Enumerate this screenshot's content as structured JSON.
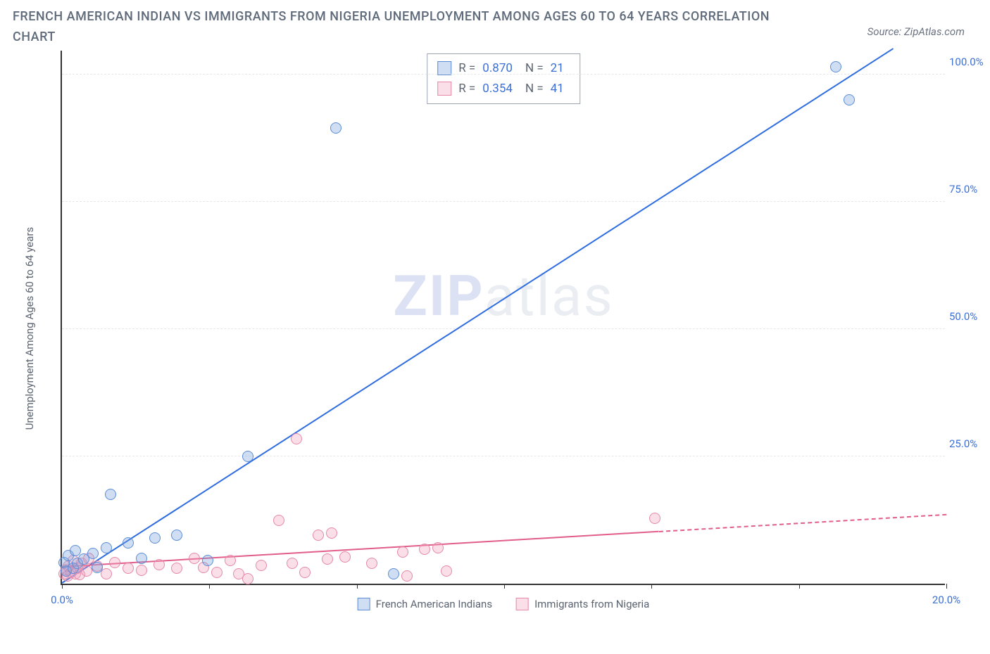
{
  "title": "FRENCH AMERICAN INDIAN VS IMMIGRANTS FROM NIGERIA UNEMPLOYMENT AMONG AGES 60 TO 64 YEARS CORRELATION CHART",
  "source": "Source: ZipAtlas.com",
  "watermark": {
    "bold": "ZIP",
    "light": "atlas"
  },
  "chart": {
    "type": "scatter",
    "ylabel": "Unemployment Among Ages 60 to 64 years",
    "xlim": [
      0,
      20
    ],
    "ylim": [
      0,
      105
    ],
    "xticks": [
      0,
      3.33,
      6.67,
      10,
      13.33,
      16.67,
      20
    ],
    "xtick_labels": {
      "0": "0.0%",
      "20": "20.0%"
    },
    "yticks": [
      25,
      50,
      75,
      100
    ],
    "ytick_labels": [
      "25.0%",
      "50.0%",
      "75.0%",
      "100.0%"
    ],
    "grid_color": "#e5e7eb",
    "axis_color": "#333333",
    "background_color": "#ffffff",
    "marker_radius": 8,
    "marker_stroke_width": 1.5,
    "line_width": 2
  },
  "series": {
    "a": {
      "name": "French American Indians",
      "color_stroke": "#5b8dd6",
      "color_fill": "rgba(120,160,220,0.35)",
      "line_color": "#2f6de0",
      "R": "0.870",
      "N": "21",
      "trend": {
        "x1": 0,
        "y1": 0,
        "x2": 18.8,
        "y2": 105,
        "dash_after_x": null
      },
      "points": [
        [
          0.05,
          4.2
        ],
        [
          0.1,
          2.5
        ],
        [
          0.15,
          5.5
        ],
        [
          0.25,
          3.0
        ],
        [
          0.3,
          6.5
        ],
        [
          0.35,
          4.0
        ],
        [
          0.5,
          4.8
        ],
        [
          0.7,
          6.0
        ],
        [
          0.8,
          3.2
        ],
        [
          1.0,
          7.0
        ],
        [
          1.1,
          17.5
        ],
        [
          1.5,
          8.0
        ],
        [
          1.8,
          5.0
        ],
        [
          2.1,
          9.0
        ],
        [
          2.6,
          9.5
        ],
        [
          3.3,
          4.5
        ],
        [
          4.2,
          25.0
        ],
        [
          6.2,
          89.5
        ],
        [
          7.5,
          2.0
        ],
        [
          17.5,
          101.5
        ],
        [
          17.8,
          95.0
        ]
      ]
    },
    "b": {
      "name": "Immigrants from Nigeria",
      "color_stroke": "#e589a7",
      "color_fill": "rgba(240,160,190,0.35)",
      "line_color": "#e15d8b",
      "R": "0.354",
      "N": "41",
      "trend": {
        "x1": 0,
        "y1": 3.2,
        "x2": 20,
        "y2": 13.5,
        "dash_after_x": 13.5
      },
      "points": [
        [
          0.05,
          2.0
        ],
        [
          0.1,
          2.8
        ],
        [
          0.12,
          1.5
        ],
        [
          0.15,
          3.5
        ],
        [
          0.2,
          2.2
        ],
        [
          0.25,
          4.5
        ],
        [
          0.3,
          2.0
        ],
        [
          0.35,
          3.0
        ],
        [
          0.4,
          1.8
        ],
        [
          0.45,
          4.0
        ],
        [
          0.55,
          2.5
        ],
        [
          0.6,
          5.0
        ],
        [
          0.8,
          3.4
        ],
        [
          1.0,
          2.0
        ],
        [
          1.2,
          4.2
        ],
        [
          1.5,
          3.0
        ],
        [
          1.8,
          2.6
        ],
        [
          2.2,
          3.8
        ],
        [
          2.6,
          3.0
        ],
        [
          3.0,
          5.0
        ],
        [
          3.2,
          3.2
        ],
        [
          3.5,
          2.2
        ],
        [
          3.8,
          4.5
        ],
        [
          4.0,
          2.0
        ],
        [
          4.2,
          1.0
        ],
        [
          4.5,
          3.6
        ],
        [
          4.9,
          12.5
        ],
        [
          5.2,
          4.0
        ],
        [
          5.3,
          28.5
        ],
        [
          5.5,
          2.2
        ],
        [
          5.8,
          9.5
        ],
        [
          6.0,
          4.8
        ],
        [
          6.1,
          10.0
        ],
        [
          6.4,
          5.2
        ],
        [
          7.0,
          4.0
        ],
        [
          7.7,
          6.2
        ],
        [
          7.8,
          1.5
        ],
        [
          8.2,
          6.8
        ],
        [
          8.5,
          7.0
        ],
        [
          8.7,
          2.5
        ],
        [
          13.4,
          12.8
        ]
      ]
    }
  },
  "legend_top": {
    "R_label": "R =",
    "N_label": "N ="
  }
}
